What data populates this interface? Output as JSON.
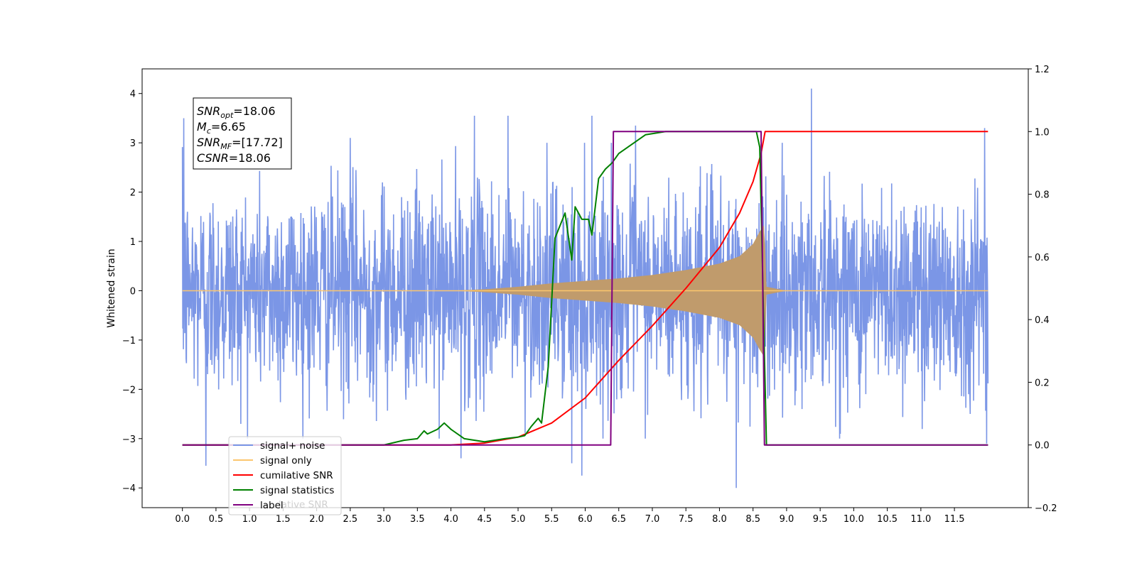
{
  "chart_data": {
    "type": "line",
    "ylabel": "Whitened strain",
    "x_ticks": [
      0.0,
      0.5,
      1.0,
      1.5,
      2.0,
      2.5,
      3.0,
      3.5,
      4.0,
      4.5,
      5.0,
      5.5,
      6.0,
      6.5,
      7.0,
      7.5,
      8.0,
      8.5,
      9.0,
      9.5,
      10.0,
      10.5,
      11.0,
      11.5
    ],
    "x_tick_labels": [
      "0.0",
      "0.5",
      "1.0",
      "1.5",
      "2.0",
      "2.5",
      "3.0",
      "3.5",
      "4.0",
      "4.5",
      "5.0",
      "5.5",
      "6.0",
      "6.5",
      "7.0",
      "7.5",
      "8.0",
      "8.5",
      "9.0",
      "9.5",
      "10.0",
      "10.5",
      "11.0",
      "11.5"
    ],
    "xlim": [
      -0.6,
      12.6
    ],
    "y_left_ticks": [
      -4,
      -3,
      -2,
      -1,
      0,
      1,
      2,
      3,
      4
    ],
    "y_left_tick_labels": [
      "−4",
      "−3",
      "−2",
      "−1",
      "0",
      "1",
      "2",
      "3",
      "4"
    ],
    "ylim_left": [
      -4.4,
      4.5
    ],
    "y_right_ticks": [
      -0.2,
      0.0,
      0.2,
      0.4,
      0.6,
      0.8,
      1.0,
      1.2
    ],
    "y_right_tick_labels": [
      "−0.2",
      "0.0",
      "0.2",
      "0.4",
      "0.6",
      "0.8",
      "1.0",
      "1.2"
    ],
    "ylim_right": [
      -0.2,
      1.2
    ],
    "grid": false,
    "legend_placement": "lower-left",
    "annotation": {
      "lines": [
        {
          "base": "SNR",
          "sub": "opt",
          "rest": "=18.06"
        },
        {
          "base": "M",
          "sub": "c",
          "rest": "=6.65"
        },
        {
          "base": "SNR",
          "sub": "MF",
          "rest": "=[17.72]"
        },
        {
          "base": "CSNR",
          "sub": "",
          "rest": "=18.06"
        }
      ]
    },
    "legend": [
      {
        "label": "signal+ noise",
        "color": "#7b96e6"
      },
      {
        "label": "signal only",
        "color": "#fcc66e"
      },
      {
        "label": "cumilative SNR",
        "color": "#ff0000"
      },
      {
        "label": "signal statistics",
        "color": "#008000"
      },
      {
        "label": "label",
        "color": "#800080"
      }
    ],
    "legend_ghost_text": "lative SNR",
    "series": [
      {
        "name": "signal+ noise",
        "axis": "left",
        "color": "#7b96e6",
        "description": "noise band",
        "x_range": [
          0.0,
          12.0
        ],
        "envelope_typical": 2.3,
        "spikes": [
          {
            "x": 0.02,
            "y": 3.5
          },
          {
            "x": 0.35,
            "y": -3.55
          },
          {
            "x": 2.5,
            "y": 3.1
          },
          {
            "x": 4.15,
            "y": -3.4
          },
          {
            "x": 4.35,
            "y": 3.55
          },
          {
            "x": 4.85,
            "y": 3.55
          },
          {
            "x": 5.8,
            "y": -3.5
          },
          {
            "x": 5.95,
            "y": -3.75
          },
          {
            "x": 6.1,
            "y": 3.55
          },
          {
            "x": 6.75,
            "y": 3.35
          },
          {
            "x": 8.25,
            "y": -4.0
          },
          {
            "x": 9.37,
            "y": 4.1
          },
          {
            "x": 11.95,
            "y": 3.3
          },
          {
            "x": 11.98,
            "y": -3.1
          }
        ]
      },
      {
        "name": "signal only",
        "axis": "left",
        "color": "#c09b6c",
        "envelope": [
          [
            0.0,
            0.0
          ],
          [
            4.0,
            0.0
          ],
          [
            4.5,
            0.03
          ],
          [
            5.0,
            0.08
          ],
          [
            5.5,
            0.15
          ],
          [
            6.0,
            0.2
          ],
          [
            6.5,
            0.25
          ],
          [
            7.0,
            0.32
          ],
          [
            7.5,
            0.42
          ],
          [
            8.0,
            0.55
          ],
          [
            8.3,
            0.7
          ],
          [
            8.5,
            0.95
          ],
          [
            8.6,
            1.2
          ],
          [
            8.67,
            1.35
          ],
          [
            8.7,
            0.08
          ],
          [
            9.0,
            0.0
          ],
          [
            12.0,
            0.0
          ]
        ]
      },
      {
        "name": "cumilative SNR",
        "axis": "right",
        "color": "#ff0000",
        "points": [
          [
            0.0,
            0.0
          ],
          [
            4.0,
            0.0
          ],
          [
            4.5,
            0.006
          ],
          [
            5.0,
            0.025
          ],
          [
            5.5,
            0.07
          ],
          [
            6.0,
            0.15
          ],
          [
            6.5,
            0.27
          ],
          [
            7.0,
            0.38
          ],
          [
            7.5,
            0.5
          ],
          [
            8.0,
            0.63
          ],
          [
            8.3,
            0.74
          ],
          [
            8.5,
            0.84
          ],
          [
            8.62,
            0.93
          ],
          [
            8.68,
            1.0
          ],
          [
            12.0,
            1.0
          ]
        ]
      },
      {
        "name": "signal statistics",
        "axis": "right",
        "color": "#008000",
        "points": [
          [
            0.0,
            0.0
          ],
          [
            3.0,
            0.0
          ],
          [
            3.3,
            0.015
          ],
          [
            3.5,
            0.02
          ],
          [
            3.6,
            0.045
          ],
          [
            3.65,
            0.035
          ],
          [
            3.8,
            0.05
          ],
          [
            3.9,
            0.07
          ],
          [
            4.0,
            0.05
          ],
          [
            4.2,
            0.02
          ],
          [
            4.5,
            0.01
          ],
          [
            4.8,
            0.02
          ],
          [
            5.0,
            0.025
          ],
          [
            5.1,
            0.03
          ],
          [
            5.2,
            0.06
          ],
          [
            5.3,
            0.085
          ],
          [
            5.35,
            0.07
          ],
          [
            5.45,
            0.25
          ],
          [
            5.55,
            0.66
          ],
          [
            5.7,
            0.74
          ],
          [
            5.8,
            0.59
          ],
          [
            5.85,
            0.76
          ],
          [
            5.95,
            0.72
          ],
          [
            6.05,
            0.72
          ],
          [
            6.1,
            0.67
          ],
          [
            6.2,
            0.85
          ],
          [
            6.3,
            0.88
          ],
          [
            6.4,
            0.9
          ],
          [
            6.5,
            0.93
          ],
          [
            6.7,
            0.96
          ],
          [
            6.9,
            0.99
          ],
          [
            7.2,
            1.0
          ],
          [
            8.55,
            1.0
          ],
          [
            8.6,
            0.95
          ],
          [
            8.7,
            0.0
          ],
          [
            12.0,
            0.0
          ]
        ]
      },
      {
        "name": "label",
        "axis": "right",
        "color": "#800080",
        "points": [
          [
            0.0,
            0.0
          ],
          [
            6.38,
            0.0
          ],
          [
            6.42,
            1.0
          ],
          [
            8.62,
            1.0
          ],
          [
            8.67,
            0.0
          ],
          [
            12.0,
            0.0
          ]
        ]
      }
    ]
  }
}
